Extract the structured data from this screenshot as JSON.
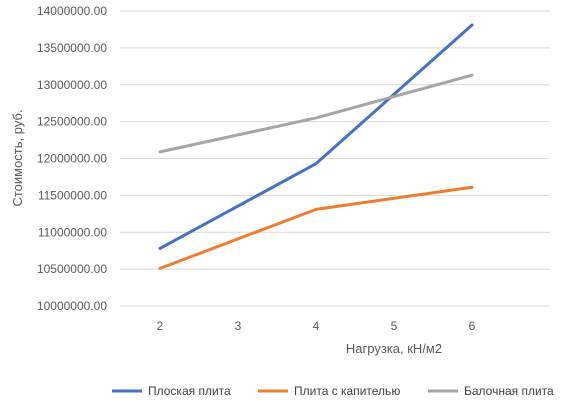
{
  "chart_data": {
    "type": "line",
    "xlabel": "Нагрузка, кН/м2",
    "ylabel": "Стоимость, руб.",
    "x_ticks": [
      "2",
      "3",
      "4",
      "5",
      "6"
    ],
    "y_tick_labels": [
      "10000000.00",
      "10500000.00",
      "11000000.00",
      "11500000.00",
      "12000000.00",
      "12500000.00",
      "13000000.00",
      "13500000.00",
      "14000000.00"
    ],
    "ylim": [
      10000000,
      14000000
    ],
    "grid": "horizontal",
    "legend_position": "bottom",
    "series": [
      {
        "name": "Плоская плита",
        "color": "#4472C4",
        "points": [
          [
            2,
            10780000
          ],
          [
            4,
            11930000
          ],
          [
            6,
            13810000
          ]
        ]
      },
      {
        "name": "Плита с капителью",
        "color": "#ED7D31",
        "points": [
          [
            2,
            10510000
          ],
          [
            4,
            11310000
          ],
          [
            6,
            11610000
          ]
        ]
      },
      {
        "name": "Балочная плита",
        "color": "#A5A5A5",
        "points": [
          [
            2,
            12090000
          ],
          [
            4,
            12550000
          ],
          [
            6,
            13130000
          ]
        ]
      }
    ]
  }
}
